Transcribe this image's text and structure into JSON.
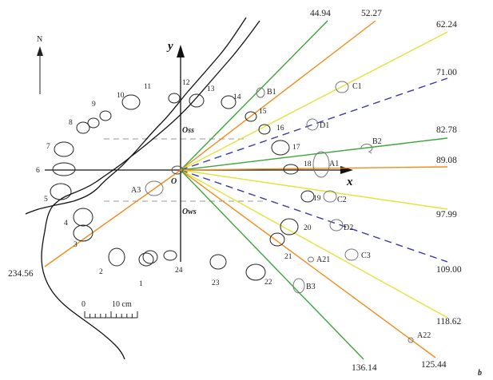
{
  "colors": {
    "green": "#3aa53a",
    "orange": "#f28c1b",
    "yellow": "#e3e33b",
    "blue": "#3a3aa8",
    "ink": "#222222"
  },
  "compass_label": "N",
  "axes": {
    "x": "x",
    "y": "y",
    "origin": "O"
  },
  "zones": {
    "upper": "Oss",
    "lower": "Ows"
  },
  "scale": {
    "start": "0",
    "end": "10 cm"
  },
  "figure_tag": "b",
  "angles": [
    "44.94",
    "52.27",
    "62.24",
    "71.00",
    "82.78",
    "89.08",
    "97.99",
    "109.00",
    "118.62",
    "125.44",
    "136.14",
    "234.56"
  ],
  "rays": [
    {
      "angle": "44.94",
      "color": "green",
      "dashed": false
    },
    {
      "angle": "52.27",
      "color": "orange",
      "dashed": false
    },
    {
      "angle": "62.24",
      "color": "yellow",
      "dashed": false
    },
    {
      "angle": "71.00",
      "color": "blue",
      "dashed": true
    },
    {
      "angle": "82.78",
      "color": "green",
      "dashed": false
    },
    {
      "angle": "89.08",
      "color": "orange",
      "dashed": false
    },
    {
      "angle": "97.99",
      "color": "yellow",
      "dashed": false
    },
    {
      "angle": "109.00",
      "color": "blue",
      "dashed": true
    },
    {
      "angle": "118.62",
      "color": "yellow",
      "dashed": false
    },
    {
      "angle": "125.44",
      "color": "orange",
      "dashed": false
    },
    {
      "angle": "136.14",
      "color": "green",
      "dashed": false
    },
    {
      "angle": "234.56",
      "color": "orange",
      "dashed": false
    }
  ],
  "stone_numbers": [
    "1",
    "2",
    "3",
    "4",
    "5",
    "6",
    "7",
    "8",
    "9",
    "10",
    "11",
    "12",
    "13",
    "14",
    "15",
    "16",
    "17",
    "18",
    "19",
    "20",
    "21",
    "22",
    "23",
    "24"
  ],
  "points": [
    "A1",
    "A3",
    "A21",
    "A22",
    "B1",
    "B2",
    "B3",
    "C1",
    "C2",
    "C3",
    "D1",
    "D2"
  ]
}
